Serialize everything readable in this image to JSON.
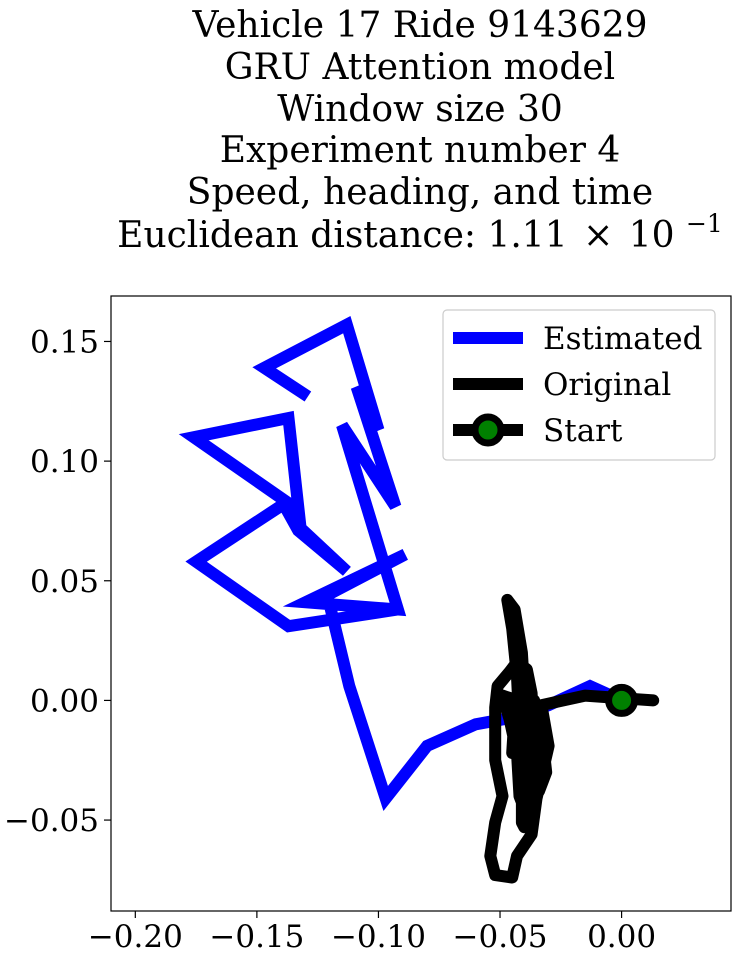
{
  "chart_data": {
    "type": "line",
    "title_lines": [
      "Vehicle 17 Ride 9143629",
      "GRU Attention model",
      "Window size 30",
      "Experiment number 4",
      "Speed, heading, and time"
    ],
    "title_last": {
      "prefix": "Euclidean distance: 1.11",
      "times": "×",
      "base": "10",
      "exponent": "−1"
    },
    "xlabel": "",
    "ylabel": "",
    "xlim": [
      -0.21,
      0.045
    ],
    "ylim": [
      -0.088,
      0.169
    ],
    "xticks": [
      -0.2,
      -0.15,
      -0.1,
      -0.05,
      0.0
    ],
    "xtick_labels": [
      "−0.20",
      "−0.15",
      "−0.10",
      "−0.05",
      "0.00"
    ],
    "yticks": [
      -0.05,
      0.0,
      0.05,
      0.1,
      0.15
    ],
    "ytick_labels": [
      "−0.05",
      "0.00",
      "0.05",
      "0.10",
      "0.15"
    ],
    "grid": false,
    "legend_position": "top-right",
    "series": [
      {
        "name": "Estimated",
        "color": "#0000ff",
        "points": [
          [
            0.0,
            0.0
          ],
          [
            -0.013,
            0.006
          ],
          [
            -0.03,
            -0.002
          ],
          [
            -0.044,
            -0.007
          ],
          [
            -0.06,
            -0.01
          ],
          [
            -0.08,
            -0.019
          ],
          [
            -0.097,
            -0.041
          ],
          [
            -0.112,
            0.006
          ],
          [
            -0.121,
            0.044
          ],
          [
            -0.089,
            0.061
          ],
          [
            -0.13,
            0.041
          ],
          [
            -0.092,
            0.038
          ],
          [
            -0.115,
            0.115
          ],
          [
            -0.093,
            0.081
          ],
          [
            -0.109,
            0.131
          ],
          [
            -0.1,
            0.113
          ],
          [
            -0.113,
            0.157
          ],
          [
            -0.147,
            0.139
          ],
          [
            -0.129,
            0.127
          ]
        ],
        "extra_path": [
          [
            -0.092,
            0.038
          ],
          [
            -0.137,
            0.031
          ],
          [
            -0.175,
            0.058
          ],
          [
            -0.139,
            0.082
          ],
          [
            -0.133,
            0.071
          ],
          [
            -0.113,
            0.054
          ],
          [
            -0.132,
            0.072
          ],
          [
            -0.137,
            0.118
          ],
          [
            -0.176,
            0.11
          ],
          [
            -0.135,
            0.081
          ]
        ]
      },
      {
        "name": "Original",
        "color": "#000000",
        "points": [
          [
            0.013,
            0.0
          ],
          [
            -0.015,
            0.002
          ],
          [
            -0.033,
            -0.002
          ],
          [
            -0.03,
            -0.019
          ],
          [
            -0.035,
            -0.041
          ],
          [
            -0.037,
            -0.056
          ],
          [
            -0.043,
            -0.065
          ],
          [
            -0.045,
            -0.074
          ],
          [
            -0.052,
            -0.073
          ],
          [
            -0.054,
            -0.065
          ],
          [
            -0.052,
            -0.051
          ],
          [
            -0.049,
            -0.04
          ],
          [
            -0.052,
            -0.025
          ],
          [
            -0.052,
            -0.003
          ],
          [
            -0.051,
            0.006
          ],
          [
            -0.046,
            0.012
          ],
          [
            -0.043,
            0.016
          ],
          [
            -0.039,
            0.013
          ],
          [
            -0.037,
            0.003
          ],
          [
            -0.036,
            -0.02
          ],
          [
            -0.038,
            -0.04
          ],
          [
            -0.04,
            -0.053
          ],
          [
            -0.041,
            -0.051
          ],
          [
            -0.041,
            -0.038
          ],
          [
            -0.042,
            -0.012
          ],
          [
            -0.043,
            0.01
          ],
          [
            -0.045,
            0.03
          ],
          [
            -0.047,
            0.042
          ],
          [
            -0.044,
            0.038
          ],
          [
            -0.041,
            0.02
          ],
          [
            -0.04,
            0.003
          ],
          [
            -0.038,
            -0.017
          ],
          [
            -0.035,
            -0.033
          ],
          [
            -0.036,
            -0.046
          ],
          [
            -0.039,
            -0.048
          ],
          [
            -0.042,
            -0.04
          ],
          [
            -0.043,
            -0.022
          ],
          [
            -0.046,
            -0.008
          ],
          [
            -0.049,
            0.002
          ],
          [
            -0.046,
            0.001
          ],
          [
            -0.042,
            -0.015
          ],
          [
            -0.038,
            -0.03
          ],
          [
            -0.034,
            -0.038
          ],
          [
            -0.031,
            -0.03
          ],
          [
            -0.033,
            -0.012
          ],
          [
            -0.036,
            0.0
          ],
          [
            -0.041,
            0.002
          ],
          [
            -0.044,
            -0.006
          ],
          [
            -0.045,
            -0.022
          ]
        ]
      }
    ],
    "start": {
      "name": "Start",
      "x": 0.0,
      "y": 0.0,
      "edge_color": "#000000",
      "face_color": "#008000"
    }
  }
}
